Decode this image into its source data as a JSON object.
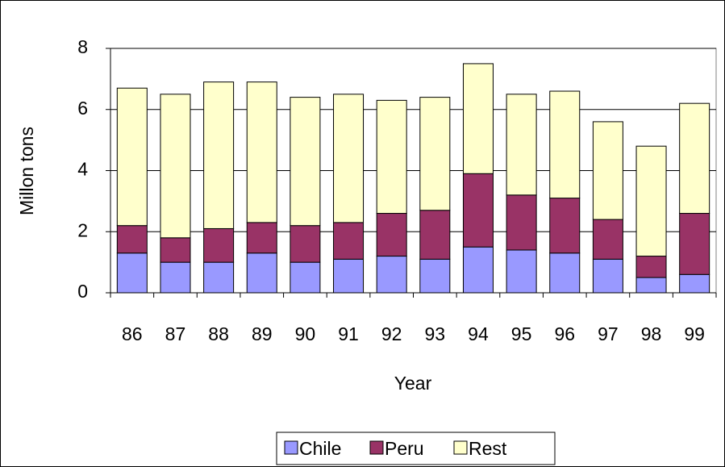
{
  "chart_data": {
    "type": "stacked_bar",
    "x_label": "Year",
    "y_label": "Millon tons",
    "categories": [
      "86",
      "87",
      "88",
      "89",
      "90",
      "91",
      "92",
      "93",
      "94",
      "95",
      "96",
      "97",
      "98",
      "99"
    ],
    "series": [
      {
        "name": "Chile",
        "color": "#9999ff",
        "values": [
          1.3,
          1.0,
          1.0,
          1.3,
          1.0,
          1.1,
          1.2,
          1.1,
          1.5,
          1.4,
          1.3,
          1.1,
          0.5,
          0.6
        ]
      },
      {
        "name": "Peru",
        "color": "#993366",
        "values": [
          0.9,
          0.8,
          1.1,
          1.0,
          1.2,
          1.2,
          1.4,
          1.6,
          2.4,
          1.8,
          1.8,
          1.3,
          0.7,
          2.0
        ]
      },
      {
        "name": "Rest",
        "color": "#ffffcc",
        "values": [
          4.5,
          4.7,
          4.8,
          4.6,
          4.2,
          4.2,
          3.7,
          3.7,
          3.6,
          3.3,
          3.5,
          3.2,
          3.6,
          3.6
        ]
      }
    ],
    "ylim": [
      0,
      8
    ],
    "yticks": [
      0,
      2,
      4,
      6,
      8
    ],
    "grid": true,
    "legend": "bottom"
  }
}
